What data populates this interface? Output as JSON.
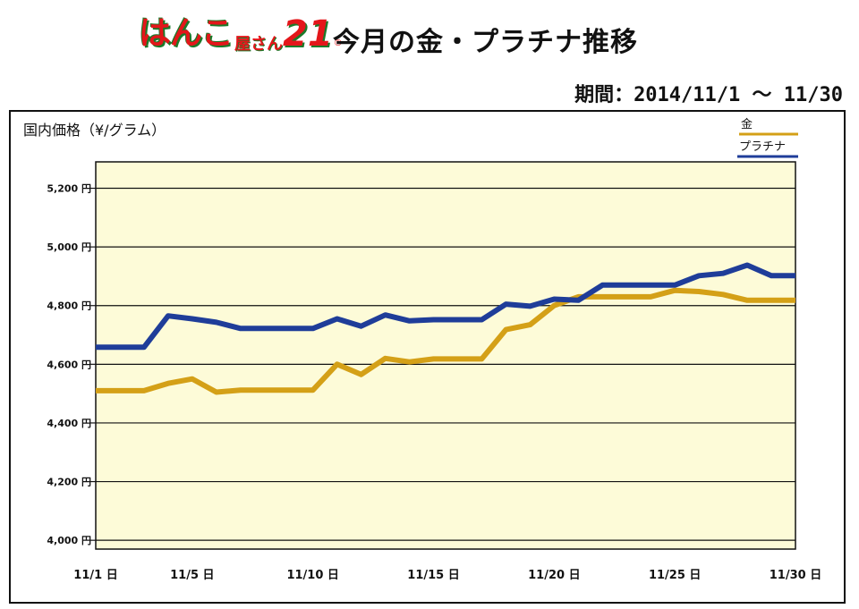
{
  "header": {
    "logo_main": "はんこ",
    "logo_small": "屋さん",
    "logo_num": "21",
    "logo_r": "®",
    "title": "今月の金・プラチナ推移",
    "period": "期間：2014/11/1 〜 11/30"
  },
  "chart_data": {
    "type": "line",
    "title": "今月の金・プラチナ推移",
    "ylabel": "国内価格（¥/グラム）",
    "xlabel": "",
    "ylim": [
      3970,
      5290
    ],
    "y_ticks": [
      4000,
      4200,
      4400,
      4600,
      4800,
      5000,
      5200
    ],
    "y_tick_labels": [
      "4,000 円",
      "4,200 円",
      "4,400 円",
      "4,600 円",
      "4,800 円",
      "5,000 円",
      "5,200 円"
    ],
    "x_ticks": [
      1,
      5,
      10,
      15,
      20,
      25,
      30
    ],
    "x_tick_labels": [
      "11/1 日",
      "11/5 日",
      "11/10 日",
      "11/15 日",
      "11/20 日",
      "11/25 日",
      "11/30 日"
    ],
    "grid": true,
    "legend_placement": "top-right",
    "series": [
      {
        "name": "金",
        "color": "#d4a017",
        "points": [
          [
            1,
            4510
          ],
          [
            2,
            4510
          ],
          [
            3,
            4510
          ],
          [
            4,
            4535
          ],
          [
            5,
            4550
          ],
          [
            6,
            4505
          ],
          [
            7,
            4512
          ],
          [
            8,
            4512
          ],
          [
            9,
            4512
          ],
          [
            10,
            4512
          ],
          [
            11,
            4600
          ],
          [
            12,
            4565
          ],
          [
            13,
            4620
          ],
          [
            14,
            4608
          ],
          [
            15,
            4618
          ],
          [
            16,
            4618
          ],
          [
            17,
            4618
          ],
          [
            18,
            4718
          ],
          [
            19,
            4735
          ],
          [
            20,
            4800
          ],
          [
            21,
            4830
          ],
          [
            22,
            4830
          ],
          [
            23,
            4830
          ],
          [
            24,
            4830
          ],
          [
            25,
            4852
          ],
          [
            26,
            4848
          ],
          [
            27,
            4838
          ],
          [
            28,
            4818
          ],
          [
            29,
            4818
          ],
          [
            30,
            4818
          ]
        ]
      },
      {
        "name": "プラチナ",
        "color": "#1f3d99",
        "points": [
          [
            1,
            4658
          ],
          [
            2,
            4658
          ],
          [
            3,
            4658
          ],
          [
            4,
            4765
          ],
          [
            5,
            4755
          ],
          [
            6,
            4743
          ],
          [
            7,
            4722
          ],
          [
            8,
            4722
          ],
          [
            9,
            4722
          ],
          [
            10,
            4722
          ],
          [
            11,
            4755
          ],
          [
            12,
            4730
          ],
          [
            13,
            4768
          ],
          [
            14,
            4748
          ],
          [
            15,
            4752
          ],
          [
            16,
            4752
          ],
          [
            17,
            4752
          ],
          [
            18,
            4805
          ],
          [
            19,
            4798
          ],
          [
            20,
            4822
          ],
          [
            21,
            4818
          ],
          [
            22,
            4870
          ],
          [
            23,
            4870
          ],
          [
            24,
            4870
          ],
          [
            25,
            4870
          ],
          [
            26,
            4902
          ],
          [
            27,
            4910
          ],
          [
            28,
            4938
          ],
          [
            29,
            4902
          ],
          [
            30,
            4902
          ]
        ]
      }
    ]
  }
}
